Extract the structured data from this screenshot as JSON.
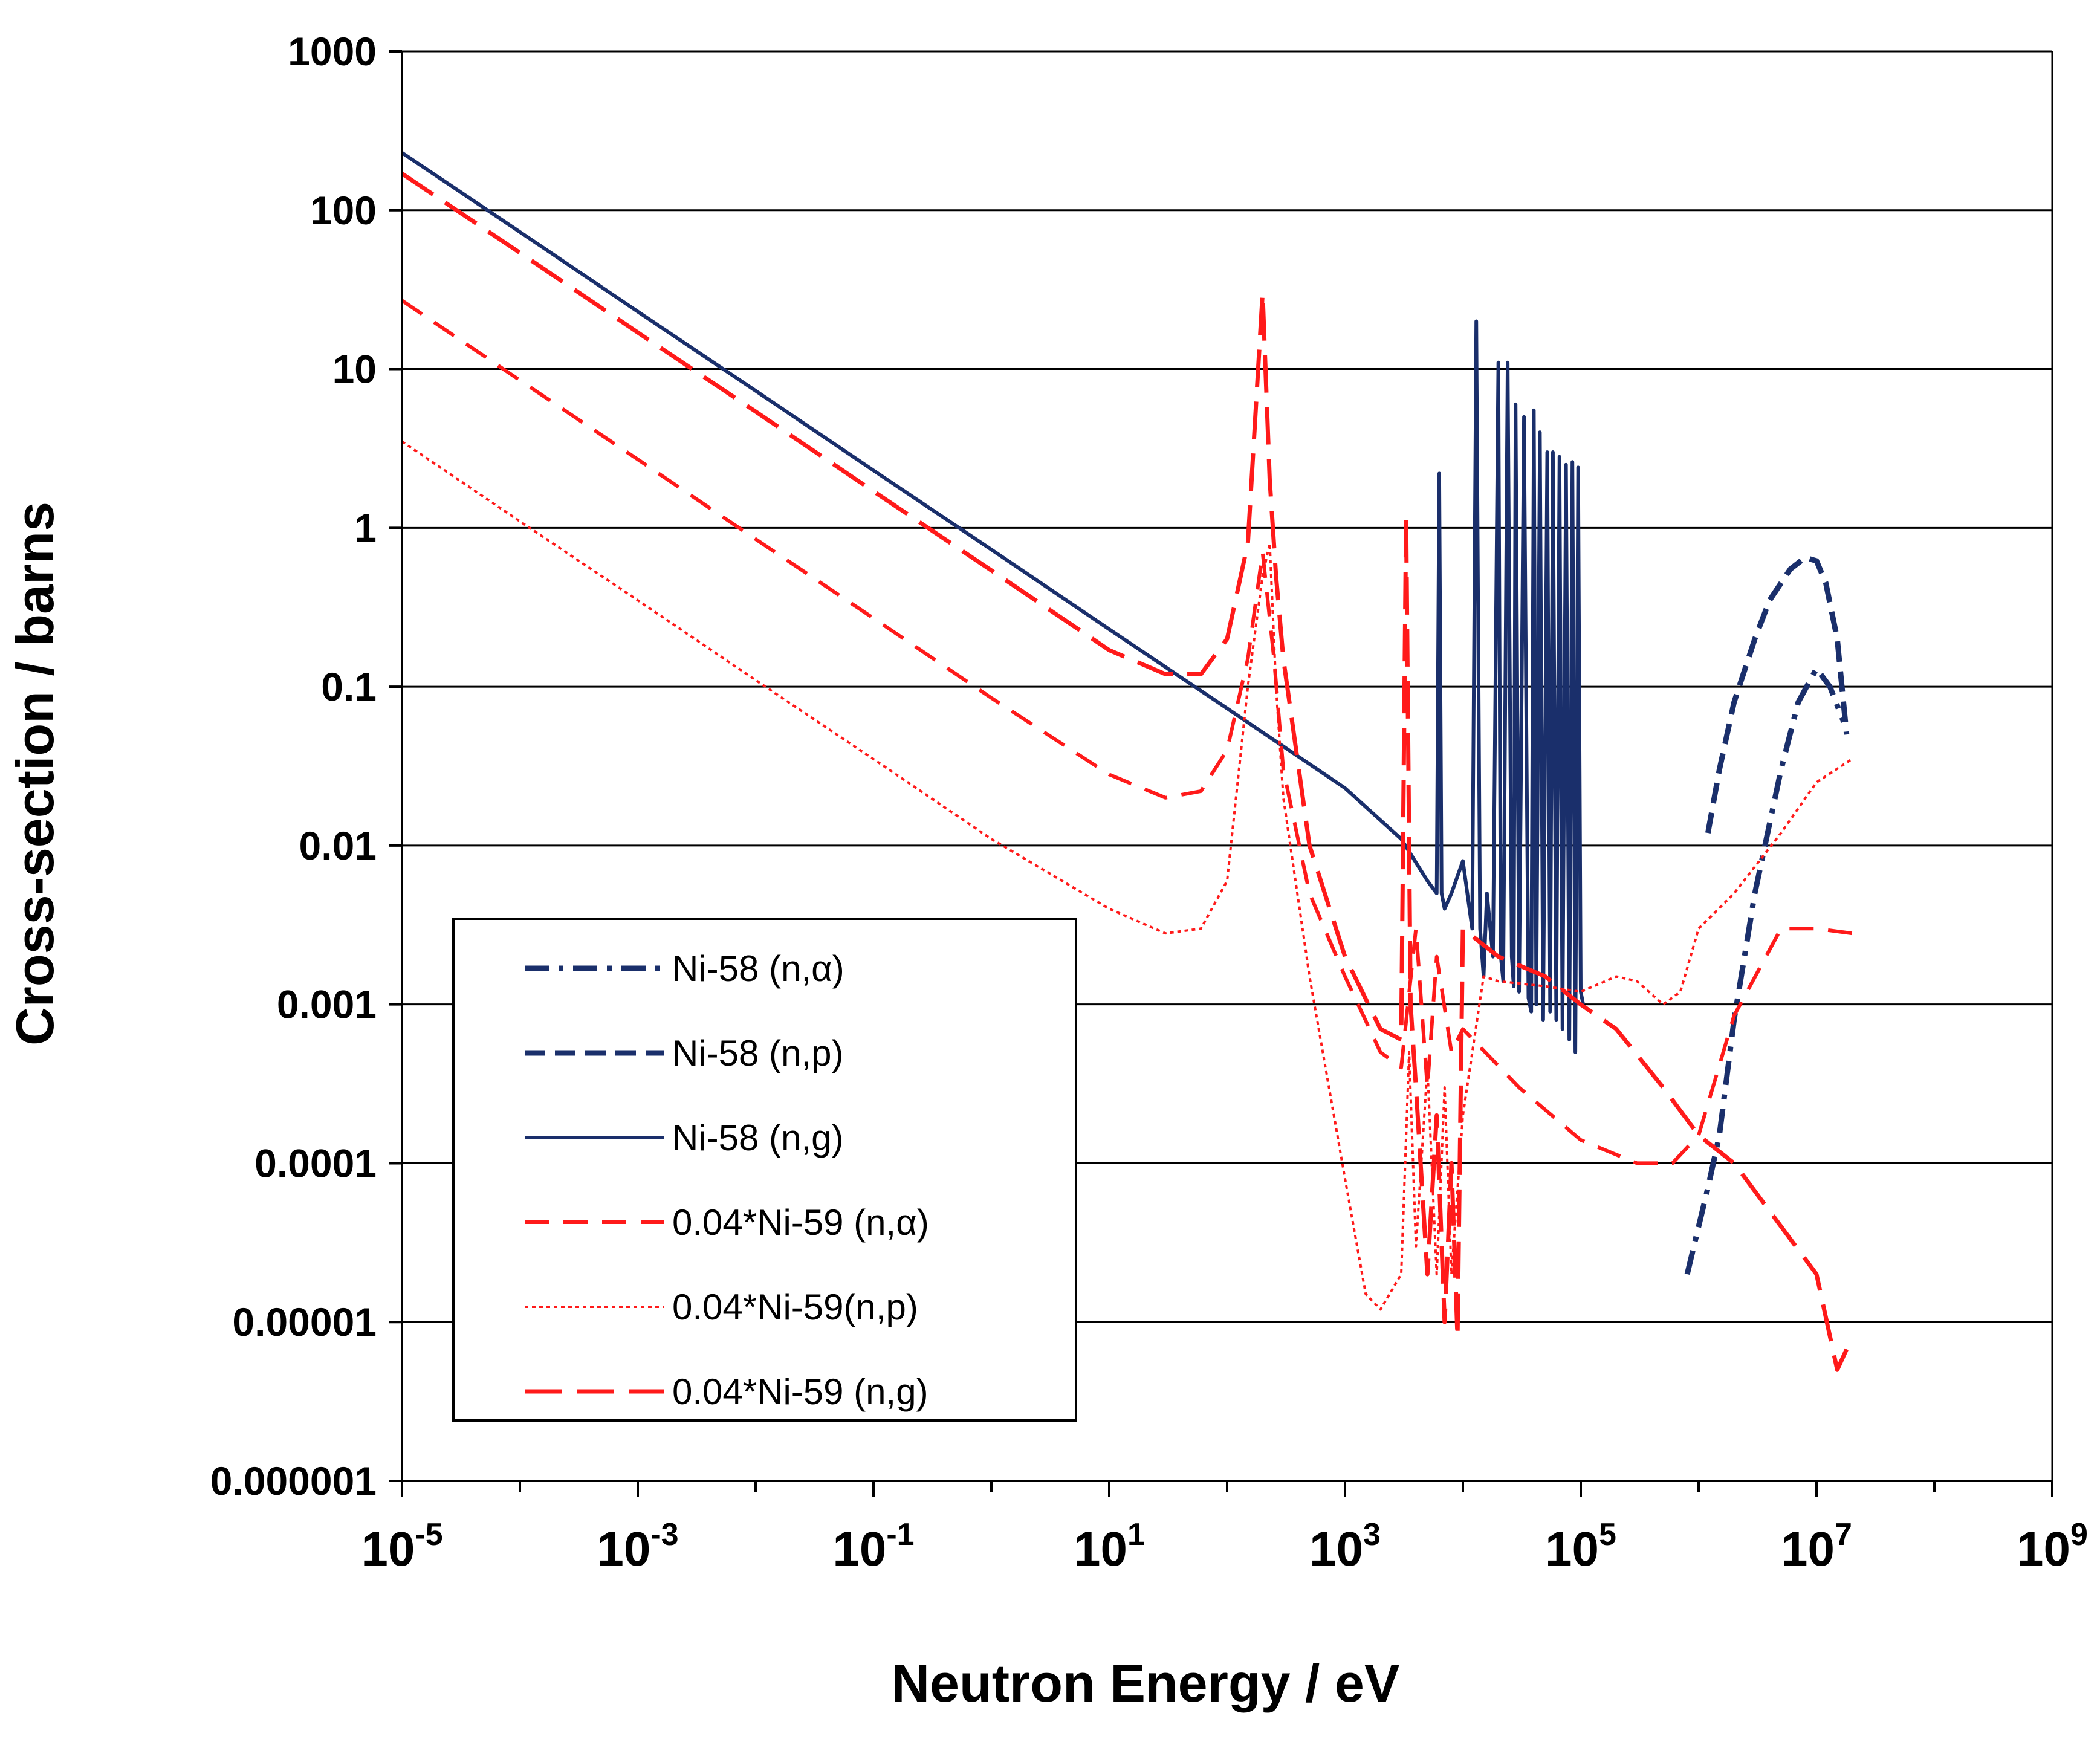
{
  "chart_data": {
    "type": "line",
    "title": "",
    "xlabel": "Neutron Energy / eV",
    "ylabel": "Cross-section / barns",
    "x_scale": "log",
    "y_scale": "log",
    "xlim": [
      1e-05,
      1000000000.0
    ],
    "ylim": [
      1e-06,
      1000
    ],
    "x_ticks": [
      {
        "base": "10",
        "exp": "-5",
        "value": 1e-05
      },
      {
        "base": "10",
        "exp": "-3",
        "value": 0.001
      },
      {
        "base": "10",
        "exp": "-1",
        "value": 0.1
      },
      {
        "base": "10",
        "exp": "1",
        "value": 10.0
      },
      {
        "base": "10",
        "exp": "3",
        "value": 1000.0
      },
      {
        "base": "10",
        "exp": "5",
        "value": 100000.0
      },
      {
        "base": "10",
        "exp": "7",
        "value": 10000000.0
      },
      {
        "base": "10",
        "exp": "9",
        "value": 1000000000.0
      }
    ],
    "y_ticks": [
      {
        "label": "1000",
        "value": 1000
      },
      {
        "label": "100",
        "value": 100
      },
      {
        "label": "10",
        "value": 10
      },
      {
        "label": "1",
        "value": 1
      },
      {
        "label": "0.1",
        "value": 0.1
      },
      {
        "label": "0.01",
        "value": 0.01
      },
      {
        "label": "0.001",
        "value": 0.001
      },
      {
        "label": "0.0001",
        "value": 0.0001
      },
      {
        "label": "0.00001",
        "value": 1e-05
      },
      {
        "label": "0.000001",
        "value": 1e-06
      }
    ],
    "grid": "horizontal",
    "legend_position": "lower-left",
    "series": [
      {
        "name": "Ni-58 (n,α)",
        "color": "#1a2f6b",
        "style": "dashdot",
        "x": [
          800000,
          1000000,
          1200000,
          1500000,
          2000000,
          3000000,
          5000000,
          7000000,
          10000000,
          13000000,
          17000000
        ],
        "y": [
          2e-05,
          4e-05,
          7e-05,
          0.00015,
          0.0008,
          0.005,
          0.03,
          0.08,
          0.13,
          0.1,
          0.06
        ]
      },
      {
        "name": "Ni-58 (n,p)",
        "color": "#1a2f6b",
        "style": "dashed",
        "x": [
          1200000,
          1500000,
          2000000,
          3000000,
          4000000,
          6000000,
          8000000,
          10000000,
          12000000,
          15000000,
          18000000
        ],
        "y": [
          0.012,
          0.03,
          0.08,
          0.2,
          0.35,
          0.55,
          0.65,
          0.62,
          0.45,
          0.2,
          0.05
        ]
      },
      {
        "name": "Ni-58 (n,g)",
        "color": "#1a2f6b",
        "style": "solid",
        "x": [
          1e-05,
          0.0001,
          0.001,
          0.01,
          0.1,
          1,
          10,
          100,
          1000,
          3000,
          5000,
          6000,
          6300,
          6600,
          7000,
          8000,
          10000,
          12000,
          13000,
          14000,
          15000,
          16000,
          18000,
          20000,
          21000,
          22000,
          24000,
          26000,
          27000,
          28000,
          30000,
          33000,
          36000,
          38000,
          40000,
          42000,
          45000,
          48000,
          52000,
          55000,
          58000,
          62000,
          66000,
          70000,
          75000,
          80000,
          85000,
          90000,
          95000,
          100000,
          105000
        ],
        "y": [
          230,
          73,
          23,
          7.3,
          2.3,
          0.73,
          0.23,
          0.073,
          0.023,
          0.011,
          0.006,
          0.005,
          2.2,
          0.005,
          0.004,
          0.005,
          0.008,
          0.003,
          20,
          0.003,
          0.0015,
          0.005,
          0.002,
          11,
          0.002,
          0.0014,
          11,
          0.002,
          0.0013,
          6,
          0.0012,
          5,
          0.0011,
          0.0009,
          5.5,
          0.001,
          4,
          0.0008,
          3,
          0.0009,
          3,
          0.0008,
          2.8,
          0.0007,
          2.5,
          0.0006,
          2.6,
          0.0005,
          2.4,
          0.0012,
          0.001
        ]
      },
      {
        "name": "0.04*Ni-59 (n,α)",
        "color": "#ff1a1a",
        "style": "dashed",
        "x": [
          1e-05,
          0.0001,
          0.001,
          0.01,
          0.1,
          1,
          10,
          30,
          60,
          100,
          150,
          200,
          250,
          300,
          500,
          1000,
          2000,
          3000,
          4000,
          5000,
          6000,
          8000,
          10000,
          30000,
          100000,
          300000,
          600000,
          1000000,
          2000000,
          5000000,
          10000000,
          20000000
        ],
        "y": [
          27,
          8.5,
          2.7,
          0.85,
          0.27,
          0.085,
          0.028,
          0.02,
          0.022,
          0.04,
          0.15,
          0.7,
          0.15,
          0.03,
          0.005,
          0.0015,
          0.0005,
          0.0004,
          0.003,
          0.0003,
          0.002,
          0.0005,
          0.0007,
          0.0003,
          0.00014,
          0.0001,
          0.0001,
          0.00015,
          0.00085,
          0.003,
          0.003,
          0.0028
        ]
      },
      {
        "name": "0.04*Ni-59(n,p)",
        "color": "#ff1a1a",
        "style": "dotted",
        "x": [
          1e-05,
          0.0001,
          0.001,
          0.01,
          0.1,
          1,
          10,
          30,
          60,
          100,
          150,
          200,
          230,
          260,
          300,
          500,
          1000,
          1500,
          2000,
          3000,
          3500,
          4000,
          5000,
          6000,
          7000,
          8000,
          10000,
          15000,
          20000,
          50000,
          100000,
          200000,
          300000,
          500000,
          700000,
          1000000,
          2000000,
          5000000,
          10000000,
          20000000
        ],
        "y": [
          3.5,
          1.1,
          0.35,
          0.11,
          0.035,
          0.011,
          0.004,
          0.0028,
          0.003,
          0.006,
          0.1,
          0.5,
          0.8,
          0.1,
          0.02,
          0.0015,
          8e-05,
          1.5e-05,
          1.2e-05,
          2e-05,
          0.0005,
          3e-05,
          0.0004,
          2e-05,
          0.0003,
          2e-05,
          0.0002,
          0.0015,
          0.0014,
          0.0013,
          0.0012,
          0.0015,
          0.0014,
          0.001,
          0.0012,
          0.003,
          0.005,
          0.012,
          0.025,
          0.035
        ]
      },
      {
        "name": "0.04*Ni-59 (n,g)",
        "color": "#ff1a1a",
        "style": "longdash",
        "x": [
          1e-05,
          0.0001,
          0.001,
          0.01,
          0.1,
          1,
          10,
          30,
          60,
          100,
          150,
          200,
          230,
          260,
          300,
          500,
          1000,
          2000,
          3000,
          3300,
          3600,
          4000,
          5000,
          6000,
          7000,
          8000,
          9000,
          10000,
          20000,
          50000,
          100000,
          200000,
          500000,
          1000000,
          2000000,
          5000000,
          10000000,
          15000000,
          20000000
        ],
        "y": [
          170,
          54,
          17,
          5.4,
          1.7,
          0.54,
          0.17,
          0.12,
          0.12,
          0.2,
          0.8,
          30,
          2,
          0.5,
          0.15,
          0.01,
          0.002,
          0.0007,
          0.0006,
          1.2,
          0.001,
          0.0003,
          2e-05,
          0.0002,
          1e-05,
          0.0001,
          8e-06,
          0.003,
          0.002,
          0.0015,
          0.001,
          0.0007,
          0.0003,
          0.00015,
          0.0001,
          4e-05,
          2e-05,
          5e-06,
          8e-06
        ]
      }
    ]
  }
}
